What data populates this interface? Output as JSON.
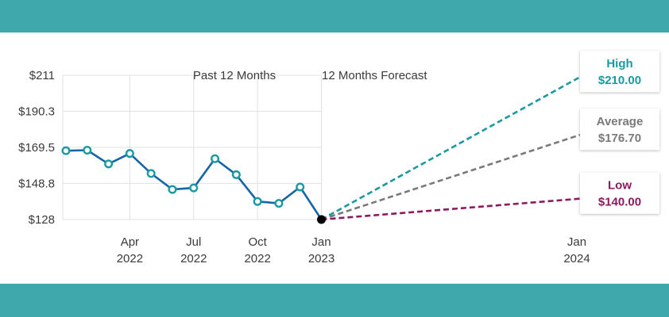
{
  "colors": {
    "band": "#3fa8ad",
    "history_line": "#1565a7",
    "history_marker": "#1a9aa0",
    "high": "#1a9aa0",
    "average": "#7a7a7a",
    "low": "#8b1a5f",
    "grid": "#e0e0e0"
  },
  "chart_data": {
    "type": "line",
    "y_ticks": [
      "$211",
      "$190.3",
      "$169.5",
      "$148.8",
      "$128"
    ],
    "y_tick_values": [
      211,
      190.3,
      169.5,
      148.8,
      128
    ],
    "ylim": [
      128,
      211
    ],
    "x_ticks": [
      {
        "month": "Apr",
        "year": "2022",
        "t": 3
      },
      {
        "month": "Jul",
        "year": "2022",
        "t": 6
      },
      {
        "month": "Oct",
        "year": "2022",
        "t": 9
      },
      {
        "month": "Jan",
        "year": "2023",
        "t": 12
      },
      {
        "month": "Jan",
        "year": "2024",
        "t": 24
      }
    ],
    "history": {
      "x": [
        0,
        1,
        2,
        3,
        4,
        5,
        6,
        7,
        8,
        9,
        10,
        11,
        12
      ],
      "y": [
        167.6,
        167.9,
        160.0,
        166.0,
        154.5,
        145.3,
        146.2,
        163.0,
        153.8,
        138.4,
        137.3,
        146.7,
        128.0
      ]
    },
    "forecast_start": {
      "x": 12,
      "y": 128.0
    },
    "forecast": [
      {
        "label": "High",
        "value_text": "$210.00",
        "value": 210.0,
        "x": 24
      },
      {
        "label": "Average",
        "value_text": "$176.70",
        "value": 176.7,
        "x": 24
      },
      {
        "label": "Low",
        "value_text": "$140.00",
        "value": 140.0,
        "x": 24
      }
    ],
    "periods": {
      "past": "Past 12 Months",
      "forecast": "12 Months Forecast"
    },
    "grid": true
  }
}
